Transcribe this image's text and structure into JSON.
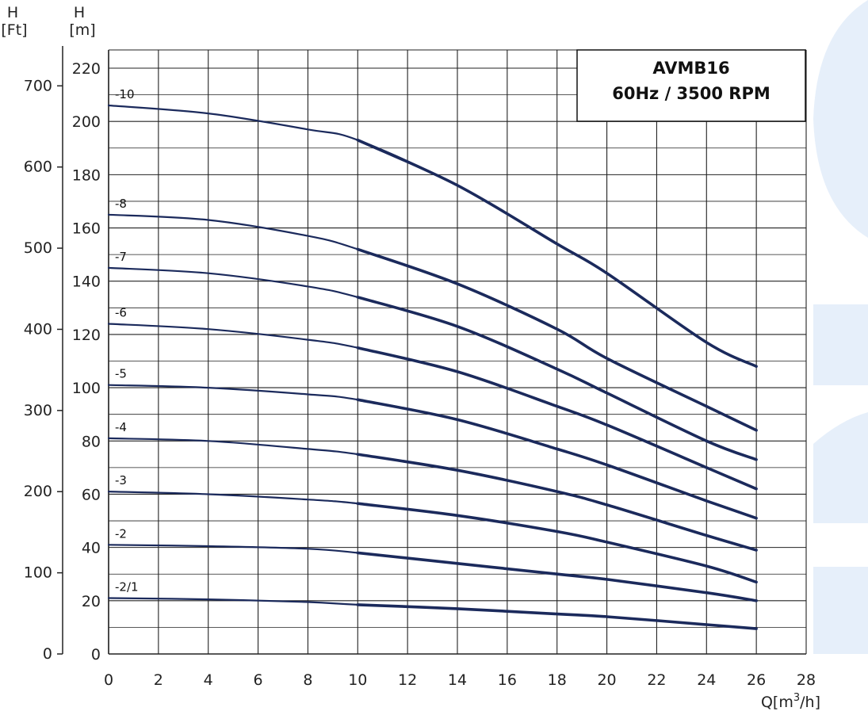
{
  "chart_data": {
    "type": "line",
    "title": "AVMB16",
    "subtitle": "60Hz / 3500 RPM",
    "xlabel": "Q[m³/h]",
    "ylabel_left": "H [Ft]",
    "ylabel_right": "H [m]",
    "xlim": [
      0,
      28
    ],
    "ylim_m": [
      0,
      220
    ],
    "ylim_ft": [
      0,
      700
    ],
    "x_ticks": [
      "0",
      "2",
      "4",
      "6",
      "8",
      "10",
      "12",
      "14",
      "16",
      "18",
      "20",
      "22",
      "24",
      "26",
      "28"
    ],
    "y_ticks_m": [
      "0",
      "20",
      "40",
      "60",
      "80",
      "100",
      "120",
      "140",
      "160",
      "180",
      "200",
      "220"
    ],
    "y_ticks_ft": [
      "0",
      "100",
      "200",
      "300",
      "400",
      "500",
      "600",
      "700"
    ],
    "grid": true,
    "line_color": "#1b2a5c",
    "background_accent": "#e6effa",
    "series": [
      {
        "name": "-2/1",
        "x": [
          0,
          4,
          8,
          10,
          14,
          18,
          20,
          24,
          26
        ],
        "y": [
          21,
          20.5,
          19.5,
          18.5,
          17,
          15,
          14,
          11,
          9.5
        ]
      },
      {
        "name": "-2",
        "x": [
          0,
          4,
          8,
          10,
          14,
          18,
          20,
          24,
          26
        ],
        "y": [
          41,
          40.5,
          39.5,
          38,
          34,
          30,
          28,
          23,
          20
        ]
      },
      {
        "name": "-3",
        "x": [
          0,
          4,
          8,
          10,
          14,
          18,
          20,
          24,
          26
        ],
        "y": [
          61,
          60,
          58,
          56.5,
          52,
          46,
          42,
          33,
          27
        ]
      },
      {
        "name": "-4",
        "x": [
          0,
          4,
          8,
          10,
          14,
          18,
          20,
          24,
          26
        ],
        "y": [
          81,
          80,
          77,
          75,
          69,
          61,
          56,
          44.5,
          39
        ]
      },
      {
        "name": "-5",
        "x": [
          0,
          4,
          8,
          10,
          14,
          18,
          20,
          24,
          26
        ],
        "y": [
          101,
          100,
          97.5,
          95.5,
          88,
          77,
          71,
          57.5,
          51
        ]
      },
      {
        "name": "-6",
        "x": [
          0,
          4,
          8,
          10,
          14,
          18,
          20,
          24,
          26
        ],
        "y": [
          124,
          122,
          118,
          115,
          106,
          93,
          86,
          70,
          62
        ]
      },
      {
        "name": "-7",
        "x": [
          0,
          4,
          8,
          10,
          14,
          18,
          20,
          24,
          26
        ],
        "y": [
          145,
          143,
          138,
          134,
          123,
          107,
          98,
          80,
          73
        ]
      },
      {
        "name": "-8",
        "x": [
          0,
          4,
          8,
          10,
          14,
          18,
          20,
          24,
          26
        ],
        "y": [
          165,
          163,
          157,
          152,
          139,
          122,
          111,
          93,
          84
        ]
      },
      {
        "name": "-10",
        "x": [
          0,
          4,
          8,
          10,
          14,
          18,
          20,
          24,
          26
        ],
        "y": [
          206,
          203,
          197,
          193,
          176,
          154,
          143,
          117,
          108
        ]
      }
    ]
  }
}
